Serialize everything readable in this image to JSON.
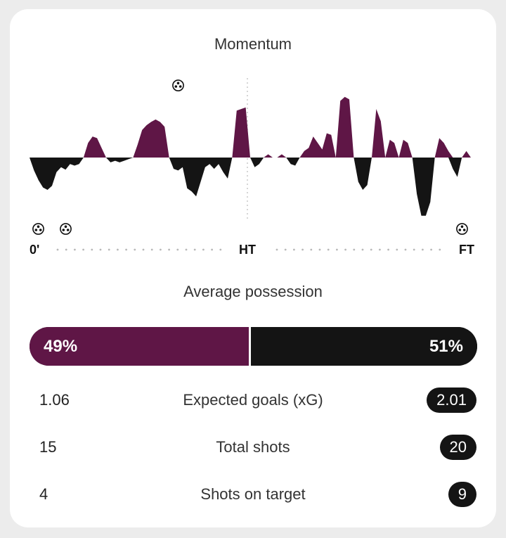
{
  "momentum": {
    "title": "Momentum",
    "axis": {
      "start": "0'",
      "half": "HT",
      "end": "FT"
    },
    "goal_icon": "soccer-ball-icon",
    "goal_minutes": {
      "top": [
        33
      ],
      "bottom": [
        2,
        8,
        96
      ]
    },
    "colors": {
      "home": "#5f1646",
      "away": "#141414"
    }
  },
  "chart_data": {
    "type": "area",
    "title": "Momentum",
    "xlabel": "",
    "ylabel": "",
    "x_ticks": [
      "0'",
      "HT",
      "FT"
    ],
    "x_range": [
      0,
      97
    ],
    "ylim": [
      -100,
      100
    ],
    "grid": false,
    "series": [
      {
        "values": [
          [
            0,
            0
          ],
          [
            1,
            -16
          ],
          [
            2,
            -28
          ],
          [
            3,
            -37
          ],
          [
            4,
            -40
          ],
          [
            5,
            -35
          ],
          [
            6,
            -18
          ],
          [
            7,
            -12
          ],
          [
            8,
            -15
          ],
          [
            9,
            -8
          ],
          [
            10,
            -10
          ],
          [
            11,
            -8
          ],
          [
            12,
            0
          ],
          [
            13,
            18
          ],
          [
            14,
            26
          ],
          [
            15,
            24
          ],
          [
            16,
            12
          ],
          [
            17,
            0
          ],
          [
            18,
            -6
          ],
          [
            19,
            -4
          ],
          [
            20,
            -6
          ],
          [
            21,
            -4
          ],
          [
            22,
            -2
          ],
          [
            23,
            0
          ],
          [
            24,
            16
          ],
          [
            25,
            34
          ],
          [
            26,
            40
          ],
          [
            27,
            44
          ],
          [
            28,
            47
          ],
          [
            29,
            44
          ],
          [
            30,
            38
          ],
          [
            31,
            0
          ],
          [
            32,
            -14
          ],
          [
            33,
            -16
          ],
          [
            34,
            -12
          ],
          [
            35,
            -38
          ],
          [
            36,
            -42
          ],
          [
            37,
            -48
          ],
          [
            38,
            -30
          ],
          [
            39,
            -12
          ],
          [
            40,
            -8
          ],
          [
            41,
            -14
          ],
          [
            42,
            -8
          ],
          [
            43,
            -18
          ],
          [
            44,
            -26
          ],
          [
            45,
            0
          ],
          [
            46,
            58
          ],
          [
            47,
            60
          ],
          [
            48,
            62
          ],
          [
            49,
            0
          ],
          [
            50,
            -12
          ],
          [
            51,
            -8
          ],
          [
            52,
            0
          ],
          [
            53,
            4
          ],
          [
            54,
            0
          ],
          [
            55,
            0
          ],
          [
            56,
            4
          ],
          [
            57,
            0
          ],
          [
            58,
            -8
          ],
          [
            59,
            -10
          ],
          [
            60,
            0
          ],
          [
            61,
            8
          ],
          [
            62,
            12
          ],
          [
            63,
            26
          ],
          [
            64,
            18
          ],
          [
            65,
            10
          ],
          [
            66,
            30
          ],
          [
            67,
            28
          ],
          [
            68,
            0
          ],
          [
            69,
            70
          ],
          [
            70,
            75
          ],
          [
            71,
            72
          ],
          [
            72,
            0
          ],
          [
            73,
            -30
          ],
          [
            74,
            -40
          ],
          [
            75,
            -34
          ],
          [
            76,
            0
          ],
          [
            77,
            60
          ],
          [
            78,
            45
          ],
          [
            79,
            0
          ],
          [
            80,
            22
          ],
          [
            81,
            18
          ],
          [
            82,
            0
          ],
          [
            83,
            22
          ],
          [
            84,
            18
          ],
          [
            85,
            0
          ],
          [
            86,
            -45
          ],
          [
            87,
            -72
          ],
          [
            88,
            -72
          ],
          [
            89,
            -55
          ],
          [
            90,
            0
          ],
          [
            91,
            24
          ],
          [
            92,
            18
          ],
          [
            93,
            8
          ],
          [
            94,
            -14
          ],
          [
            95,
            -24
          ],
          [
            96,
            0
          ],
          [
            97,
            8
          ],
          [
            98,
            0
          ]
        ]
      }
    ]
  },
  "possession": {
    "title": "Average possession",
    "home_value": "49%",
    "away_value": "51%",
    "home_fraction": 0.49
  },
  "stats": [
    {
      "home": "1.06",
      "label": "Expected goals (xG)",
      "away": "2.01"
    },
    {
      "home": "15",
      "label": "Total shots",
      "away": "20"
    },
    {
      "home": "4",
      "label": "Shots on target",
      "away": "9"
    }
  ]
}
